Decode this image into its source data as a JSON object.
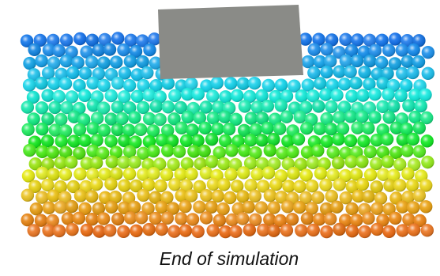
{
  "caption": "End of simulation"
}
